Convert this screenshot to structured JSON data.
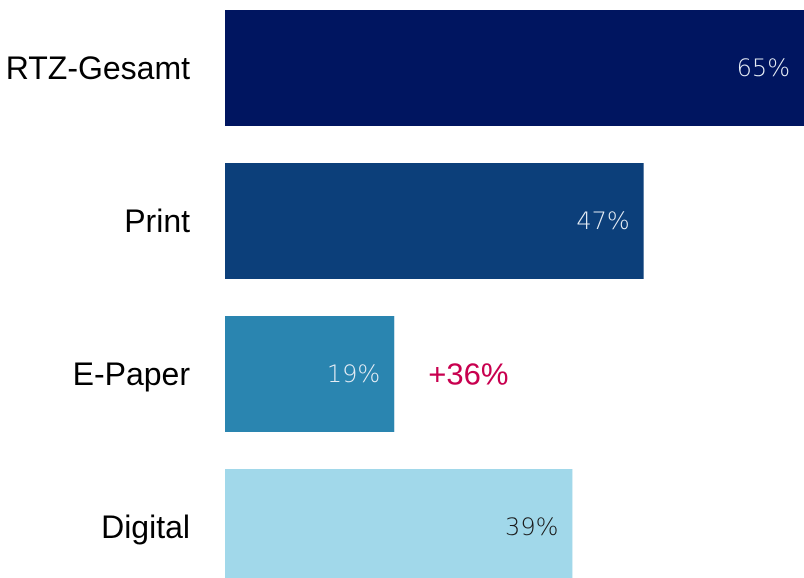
{
  "chart_data": {
    "type": "bar",
    "orientation": "horizontal",
    "categories": [
      "RTZ-Gesamt",
      "Print",
      "E-Paper",
      "Digital"
    ],
    "values": [
      65,
      47,
      19,
      39
    ],
    "value_labels": [
      "65%",
      "47%",
      "19%",
      "39%"
    ],
    "unit": "%",
    "xlim": [
      0,
      65
    ],
    "grid": false,
    "legend": "none",
    "bar_colors": [
      "#001560",
      "#0c3f7a",
      "#2a85b0",
      "#a1d8ea"
    ],
    "value_label_colors": [
      "#e6edf5",
      "#e6edf5",
      "#e6edf5",
      "#1a1a1a"
    ],
    "annotations": [
      {
        "category": "E-Paper",
        "text": "+36%",
        "color": "#c8004f"
      }
    ]
  }
}
